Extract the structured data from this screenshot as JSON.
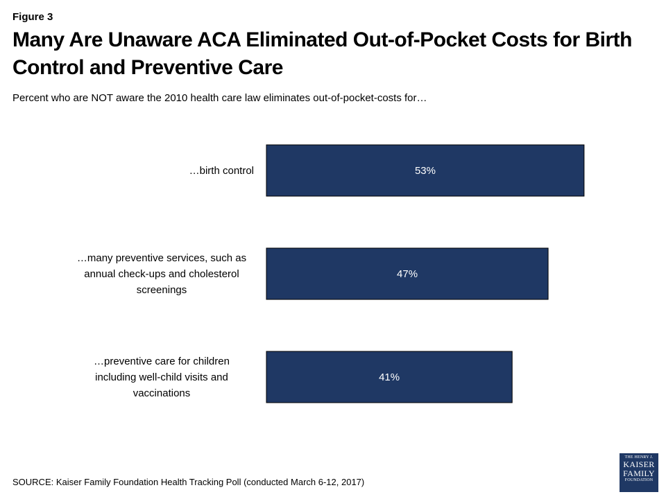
{
  "figure_label": "Figure 3",
  "title": "Many Are Unaware ACA Eliminated Out-of-Pocket Costs for Birth Control and Preventive Care",
  "subtitle": "Percent who are NOT aware the 2010 health care law eliminates out-of-pocket-costs for…",
  "source": "SOURCE: Kaiser Family Foundation Health Tracking Poll (conducted March 6-12, 2017)",
  "logo": {
    "line1": "THE HENRY J.",
    "line2": "KAISER",
    "line3": "FAMILY",
    "line4": "FOUNDATION"
  },
  "chart_data": {
    "type": "bar",
    "orientation": "horizontal",
    "categories": [
      [
        "…birth control"
      ],
      [
        "…many preventive services, such as",
        "annual check-ups and cholesterol",
        "screenings"
      ],
      [
        "…preventive care for children",
        "including well-child visits and",
        "vaccinations"
      ]
    ],
    "values": [
      53,
      47,
      41
    ],
    "data_labels": [
      "53%",
      "47%",
      "41%"
    ],
    "unit": "%",
    "xlim": [
      0,
      100
    ],
    "grid": false,
    "legend": "none",
    "bar_color": "#1f3864",
    "label_color": "#ffffff"
  }
}
